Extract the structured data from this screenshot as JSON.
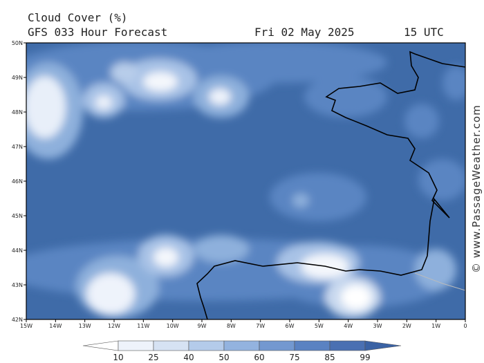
{
  "header": {
    "title": "Cloud Cover (%)",
    "subtitle": "GFS 033 Hour Forecast",
    "date": "Fri 02 May 2025",
    "time": "15 UTC"
  },
  "map": {
    "lat_labels": [
      "50N",
      "49N",
      "48N",
      "47N",
      "46N",
      "45N",
      "44N",
      "43N",
      "42N"
    ],
    "lon_labels": [
      "15W",
      "14W",
      "13W",
      "12W",
      "11W",
      "10W",
      "9W",
      "8W",
      "7W",
      "6W",
      "5W",
      "4W",
      "3W",
      "2W",
      "1W",
      "0"
    ]
  },
  "legend": {
    "levels": [
      10,
      25,
      40,
      50,
      60,
      75,
      85,
      99
    ]
  },
  "watermark": "© www.PassageWeather.com"
}
